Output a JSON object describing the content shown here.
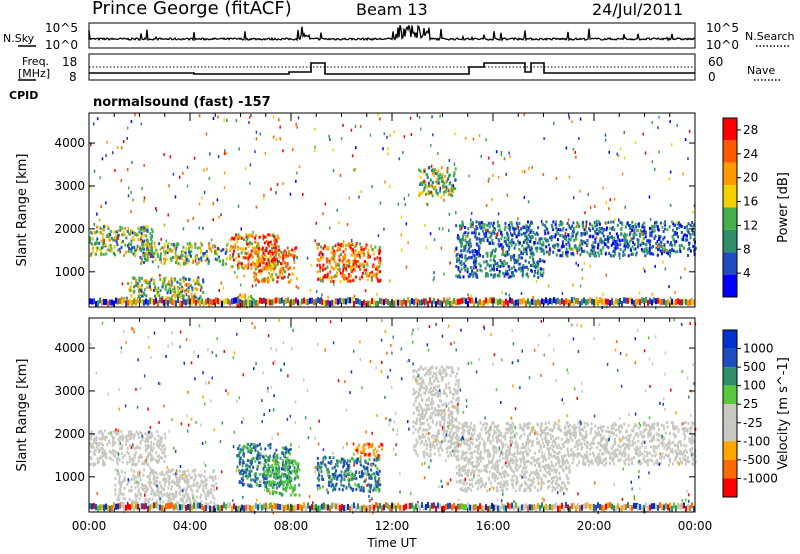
{
  "header": {
    "station": "Prince George (fitACF)",
    "beam": "Beam 13",
    "date": "24/Jul/2011"
  },
  "noise_panel": {
    "left_label": "N.Sky",
    "right_label": "N.Search",
    "left_ticks": [
      "10^5",
      "10^0"
    ],
    "right_ticks": [
      "10^5",
      "10^0"
    ]
  },
  "freq_panel": {
    "left_label_1": "Freq.",
    "left_label_2": "[MHz]",
    "right_label": "Nave",
    "left_ticks": [
      "18",
      "8"
    ],
    "right_ticks": [
      "60",
      "0"
    ]
  },
  "cpid": {
    "label": "CPID",
    "value": "normalsound (fast) -157"
  },
  "colors": {
    "power_scale": [
      "#0000ff",
      "#1e4dbf",
      "#2f8f6a",
      "#44b04b",
      "#f5d000",
      "#ff9a00",
      "#ff5a00",
      "#ff0000"
    ],
    "velocity_scale": [
      "#ff0000",
      "#ff6a00",
      "#ffa500",
      "#c8c8c0",
      "#c8c8c0",
      "#57c93c",
      "#2f8f6a",
      "#1e4dbf",
      "#0033cc"
    ]
  },
  "chart_data": [
    {
      "type": "heatmap",
      "name": "power",
      "xlabel": "Time UT",
      "ylabel": "Slant Range [km]",
      "x_ticks": [
        "00:00",
        "04:00",
        "08:00",
        "12:00",
        "16:00",
        "20:00",
        "00:00"
      ],
      "xlim_hours": [
        0,
        24
      ],
      "y_ticks": [
        1000,
        2000,
        3000,
        4000
      ],
      "ylim": [
        180,
        4700
      ],
      "colorbar": {
        "label": "Power [dB]",
        "ticks": [
          4,
          8,
          12,
          16,
          20,
          24,
          28
        ],
        "range": [
          0,
          30
        ]
      },
      "echo_regions": [
        {
          "t0": 0.0,
          "t1": 2.5,
          "r0": 1400,
          "r1": 2100,
          "level": "medium"
        },
        {
          "t0": 1.5,
          "t1": 4.5,
          "r0": 400,
          "r1": 900,
          "level": "medium"
        },
        {
          "t0": 2.0,
          "t1": 5.5,
          "r0": 1200,
          "r1": 1700,
          "level": "medium"
        },
        {
          "t0": 5.5,
          "t1": 7.5,
          "r0": 1100,
          "r1": 1900,
          "level": "high"
        },
        {
          "t0": 6.5,
          "t1": 8.2,
          "r0": 800,
          "r1": 1600,
          "level": "high"
        },
        {
          "t0": 9.0,
          "t1": 11.5,
          "r0": 800,
          "r1": 1700,
          "level": "high"
        },
        {
          "t0": 5.7,
          "t1": 6.5,
          "r0": 200,
          "r1": 500,
          "level": "high"
        },
        {
          "t0": 13.0,
          "t1": 14.5,
          "r0": 2800,
          "r1": 3500,
          "level": "medium"
        },
        {
          "t0": 14.5,
          "t1": 24.0,
          "r0": 1400,
          "r1": 2200,
          "level": "low"
        },
        {
          "t0": 14.5,
          "t1": 18.0,
          "r0": 900,
          "r1": 1400,
          "level": "low"
        }
      ]
    },
    {
      "type": "heatmap",
      "name": "velocity",
      "xlabel": "Time UT",
      "ylabel": "Slant Range [km]",
      "x_ticks": [
        "00:00",
        "04:00",
        "08:00",
        "12:00",
        "16:00",
        "20:00",
        "00:00"
      ],
      "xlim_hours": [
        0,
        24
      ],
      "y_ticks": [
        1000,
        2000,
        3000,
        4000
      ],
      "ylim": [
        180,
        4700
      ],
      "colorbar": {
        "label": "Velocity [m s^-1]",
        "ticks": [
          1000,
          500,
          100,
          25,
          -25,
          -100,
          -500,
          -1000
        ]
      },
      "echo_regions": [
        {
          "t0": 0.0,
          "t1": 3.0,
          "r0": 1300,
          "r1": 2100,
          "level": "ground"
        },
        {
          "t0": 1.0,
          "t1": 5.0,
          "r0": 400,
          "r1": 1200,
          "level": "ground"
        },
        {
          "t0": 5.8,
          "t1": 8.0,
          "r0": 800,
          "r1": 1800,
          "level": "toward"
        },
        {
          "t0": 7.0,
          "t1": 8.3,
          "r0": 600,
          "r1": 1500,
          "level": "toward_slow"
        },
        {
          "t0": 9.0,
          "t1": 11.5,
          "r0": 700,
          "r1": 1500,
          "level": "toward"
        },
        {
          "t0": 10.5,
          "t1": 11.6,
          "r0": 1500,
          "r1": 1800,
          "level": "away"
        },
        {
          "t0": 12.8,
          "t1": 14.6,
          "r0": 1500,
          "r1": 3600,
          "level": "ground"
        },
        {
          "t0": 14.5,
          "t1": 24.0,
          "r0": 1300,
          "r1": 2300,
          "level": "ground"
        },
        {
          "t0": 14.5,
          "t1": 19.0,
          "r0": 700,
          "r1": 1300,
          "level": "ground"
        }
      ]
    }
  ]
}
